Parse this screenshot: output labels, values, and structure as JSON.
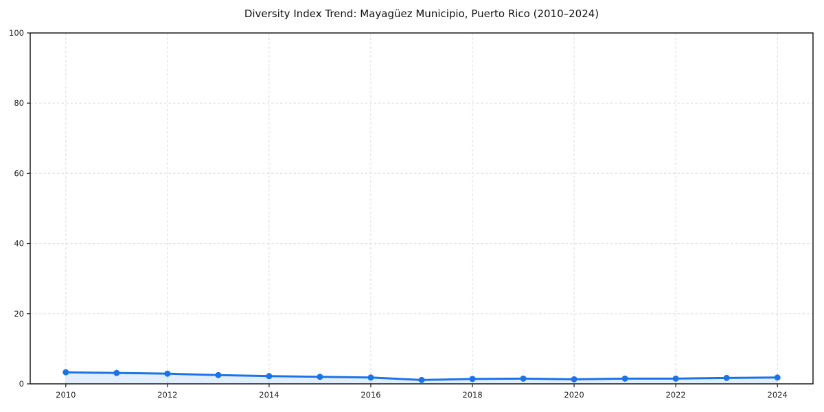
{
  "title": "Diversity Index Trend: Mayagüez Municipio, Puerto Rico (2010–2024)",
  "colors": {
    "line": "#1a73e8",
    "area_fill": "rgba(26,115,232,0.12)",
    "grid": "#e0e0e0",
    "axis": "#1a1a1a",
    "tick_label": "#222222",
    "background": "#ffffff"
  },
  "chart_data": {
    "type": "line",
    "title": "Diversity Index Trend: Mayagüez Municipio, Puerto Rico (2010–2024)",
    "xlabel": "",
    "ylabel": "",
    "x": [
      2010,
      2011,
      2012,
      2013,
      2014,
      2015,
      2016,
      2017,
      2018,
      2019,
      2020,
      2021,
      2022,
      2023,
      2024
    ],
    "series": [
      {
        "name": "Diversity Index",
        "values": [
          3.3,
          3.1,
          2.9,
          2.5,
          2.2,
          2.0,
          1.8,
          1.1,
          1.4,
          1.5,
          1.3,
          1.5,
          1.5,
          1.7,
          1.8
        ]
      }
    ],
    "ylim": [
      0,
      100
    ],
    "xlim": [
      2009.3,
      2024.7
    ],
    "yticks": [
      0,
      20,
      40,
      60,
      80,
      100
    ],
    "xticks": [
      2010,
      2012,
      2014,
      2016,
      2018,
      2020,
      2022,
      2024
    ],
    "grid": true,
    "grid_style": "dashed",
    "legend": "none",
    "marker": "circle",
    "area_fill": true
  }
}
